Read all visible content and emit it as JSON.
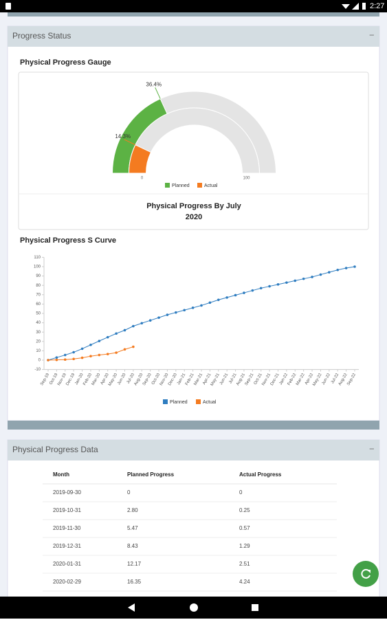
{
  "status_bar": {
    "time": "2:27"
  },
  "progress_panel": {
    "title": "Progress Status",
    "collapse": "−"
  },
  "gauge_heading": "Physical Progress Gauge",
  "curve_heading": "Physical Progress S Curve",
  "chart_data": [
    {
      "type": "gauge",
      "title": "Physical Progress By July 2020",
      "series": [
        {
          "name": "Planned",
          "color": "#5cb244",
          "values": [
            36.4
          ],
          "value_labels": [
            "36.4%"
          ]
        },
        {
          "name": "Actual",
          "color": "#f47b20",
          "values": [
            14.3
          ],
          "value_labels": [
            "14.3%"
          ]
        }
      ],
      "ylim": [
        0,
        100
      ],
      "yticks": [
        0,
        100
      ],
      "legend": "bottom"
    },
    {
      "type": "line",
      "categories": [
        "Sep-19",
        "Oct-19",
        "Nov-19",
        "Dec-19",
        "Jan-20",
        "Feb-20",
        "Mar-20",
        "Apr-20",
        "May-20",
        "Jun-20",
        "Jul-20",
        "Aug-20",
        "Sep-20",
        "Oct-20",
        "Nov-20",
        "Dec-20",
        "Jan-21",
        "Feb-21",
        "Mar-21",
        "Apr-21",
        "May-21",
        "Jun-21",
        "Jul-21",
        "Aug-21",
        "Sep-21",
        "Oct-21",
        "Nov-21",
        "Dec-21",
        "Jan-22",
        "Feb-22",
        "Mar-22",
        "Apr-22",
        "May-22",
        "Jun-22",
        "Jul-22",
        "Aug-22",
        "Sep-22"
      ],
      "series": [
        {
          "name": "Planned",
          "color": "#2f7dc0",
          "values": [
            0,
            2.8,
            5.47,
            8.43,
            12.17,
            16.35,
            20.5,
            24.5,
            28.5,
            32,
            36.4,
            39.5,
            42.5,
            45.5,
            48.5,
            51,
            53.5,
            56,
            58.5,
            61.5,
            64.5,
            67,
            69.5,
            72,
            74.5,
            77,
            79,
            81,
            83,
            85,
            87,
            89,
            91.5,
            94,
            96.5,
            98.5,
            100
          ]
        },
        {
          "name": "Actual",
          "color": "#f47b20",
          "values": [
            0,
            0.25,
            0.57,
            1.29,
            2.51,
            4.24,
            5.5,
            6.5,
            8,
            11.5,
            14.3,
            null,
            null,
            null,
            null,
            null,
            null,
            null,
            null,
            null,
            null,
            null,
            null,
            null,
            null,
            null,
            null,
            null,
            null,
            null,
            null,
            null,
            null,
            null,
            null,
            null,
            null
          ]
        }
      ],
      "ylim": [
        -10,
        110
      ],
      "yticks": [
        -10,
        0,
        10,
        20,
        30,
        40,
        50,
        60,
        70,
        80,
        90,
        100,
        110
      ],
      "legend": "bottom"
    }
  ],
  "data_panel": {
    "title": "Physical Progress Data",
    "collapse": "−"
  },
  "table": {
    "header": [
      "Month",
      "Planned Progress",
      "Actual Progress"
    ],
    "rows": [
      [
        "2019-09-30",
        "0",
        "0"
      ],
      [
        "2019-10-31",
        "2.80",
        "0.25"
      ],
      [
        "2019-11-30",
        "5.47",
        "0.57"
      ],
      [
        "2019-12-31",
        "8.43",
        "1.29"
      ],
      [
        "2020-01-31",
        "12.17",
        "2.51"
      ],
      [
        "2020-02-29",
        "16.35",
        "4.24"
      ]
    ]
  }
}
